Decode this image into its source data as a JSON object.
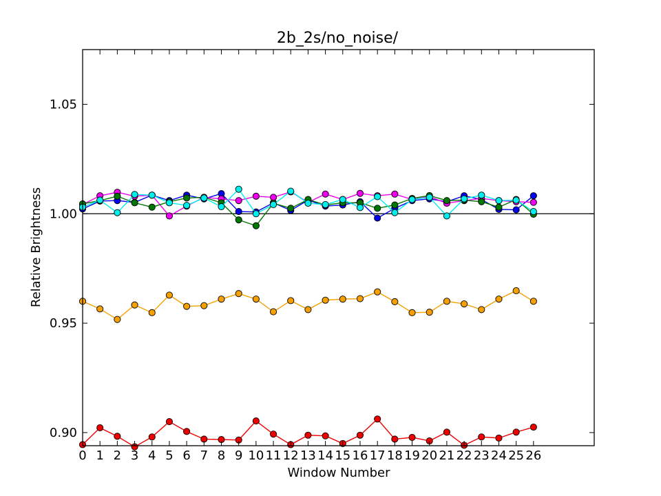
{
  "chart_data": {
    "type": "line",
    "title": "2b_2s/no_noise/",
    "xlabel": "Window Number",
    "ylabel": "Relative Brightness",
    "x": [
      0,
      1,
      2,
      3,
      4,
      5,
      6,
      7,
      8,
      9,
      10,
      11,
      12,
      13,
      14,
      15,
      16,
      17,
      18,
      19,
      20,
      21,
      22,
      23,
      24,
      25,
      26
    ],
    "x_tick_labels": [
      "0",
      "1",
      "2",
      "3",
      "4",
      "5",
      "6",
      "7",
      "8",
      "9",
      "10",
      "11",
      "12",
      "13",
      "14",
      "15",
      "16",
      "17",
      "18",
      "19",
      "20",
      "21",
      "22",
      "23",
      "24",
      "25",
      "26"
    ],
    "xlim": [
      0,
      29.5
    ],
    "ylim": [
      0.894,
      1.075
    ],
    "y_tick_labels": [
      "0.90",
      "0.95",
      "1.00",
      "1.05"
    ],
    "y_ticks": [
      0.9,
      0.95,
      1.0,
      1.05
    ],
    "reference_line": 1.0,
    "grid": false,
    "series": [
      {
        "color": "#0000ee",
        "values": [
          1.0022,
          1.0058,
          1.006,
          1.0052,
          1.0085,
          1.006,
          1.0085,
          1.0068,
          1.0092,
          1.001,
          1.0008,
          1.005,
          1.0015,
          1.0062,
          1.0035,
          1.004,
          1.0055,
          0.998,
          1.0025,
          1.006,
          1.0068,
          1.0055,
          1.0082,
          1.0065,
          1.002,
          1.0018,
          1.0082
        ]
      },
      {
        "color": "#ee00ee",
        "values": [
          1.0042,
          1.0082,
          1.0098,
          1.008,
          1.0085,
          0.999,
          1.0035,
          1.0075,
          1.0068,
          1.006,
          1.008,
          1.0075,
          1.01,
          1.0052,
          1.009,
          1.0065,
          1.0093,
          1.0082,
          1.009,
          1.0065,
          1.0078,
          1.0048,
          1.006,
          1.007,
          1.006,
          1.0055,
          1.0052
        ]
      },
      {
        "color": "#007700",
        "values": [
          1.0045,
          1.006,
          1.008,
          1.005,
          1.003,
          1.0055,
          1.0072,
          1.0075,
          1.005,
          0.9972,
          0.9945,
          1.0048,
          1.0025,
          1.0065,
          1.004,
          1.005,
          1.005,
          1.0025,
          1.004,
          1.007,
          1.0083,
          1.006,
          1.0062,
          1.0055,
          1.003,
          1.0065,
          0.9998
        ]
      },
      {
        "color": "#00eeee",
        "values": [
          1.003,
          1.0062,
          1.0005,
          1.0088,
          1.0085,
          1.005,
          1.0038,
          1.0072,
          1.0032,
          1.0112,
          1.0,
          1.0042,
          1.0103,
          1.0048,
          1.0042,
          1.0065,
          1.0028,
          1.0078,
          1.0005,
          1.0065,
          1.0075,
          0.999,
          1.0068,
          1.0085,
          1.006,
          1.0062,
          1.001
        ]
      },
      {
        "color": "#f5a000",
        "values": [
          0.96,
          0.9565,
          0.9517,
          0.9583,
          0.9548,
          0.9628,
          0.9577,
          0.958,
          0.961,
          0.9635,
          0.961,
          0.9552,
          0.9603,
          0.9562,
          0.9605,
          0.961,
          0.9612,
          0.9643,
          0.9598,
          0.9548,
          0.955,
          0.96,
          0.9588,
          0.9562,
          0.961,
          0.9648,
          0.96
        ]
      },
      {
        "color": "#ee0000",
        "values": [
          0.8945,
          0.9022,
          0.8983,
          0.8935,
          0.898,
          0.905,
          0.9005,
          0.897,
          0.8968,
          0.8966,
          0.9053,
          0.8993,
          0.8945,
          0.8988,
          0.8985,
          0.895,
          0.8988,
          0.9062,
          0.897,
          0.8978,
          0.8962,
          0.9002,
          0.8942,
          0.898,
          0.8975,
          0.9002,
          0.9025
        ]
      }
    ]
  }
}
